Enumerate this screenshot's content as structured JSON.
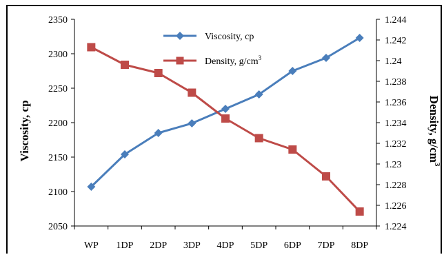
{
  "chart_data": {
    "type": "line",
    "categories": [
      "WP",
      "1DP",
      "2DP",
      "3DP",
      "4DP",
      "5DP",
      "6DP",
      "7DP",
      "8DP"
    ],
    "ylabel": "Viscosity, cp",
    "y2label_base": "Density, g/cm",
    "y2label_sup": "3",
    "yticks": [
      "2050",
      "2100",
      "2150",
      "2200",
      "2250",
      "2300",
      "2350"
    ],
    "y2ticks": [
      "1.224",
      "1.226",
      "1.228",
      "1.23",
      "1.232",
      "1.234",
      "1.236",
      "1.238",
      "1.24",
      "1.242",
      "1.244"
    ],
    "ylim": [
      2050,
      2350
    ],
    "y2lim": [
      1.224,
      1.244
    ],
    "legend_position": "top-center",
    "series": [
      {
        "name": "Viscosity, cp",
        "axis": "left",
        "marker": "diamond",
        "color": "#4a7ebb",
        "values": [
          2107,
          2154,
          2185,
          2199,
          2220,
          2241,
          2275,
          2294,
          2323
        ]
      },
      {
        "name_base": "Density, g/cm",
        "name_sup": "3",
        "axis": "right",
        "marker": "square",
        "color": "#be4b48",
        "values": [
          1.2413,
          1.2396,
          1.2388,
          1.2369,
          1.2344,
          1.2325,
          1.2314,
          1.2288,
          1.2254
        ]
      }
    ]
  }
}
